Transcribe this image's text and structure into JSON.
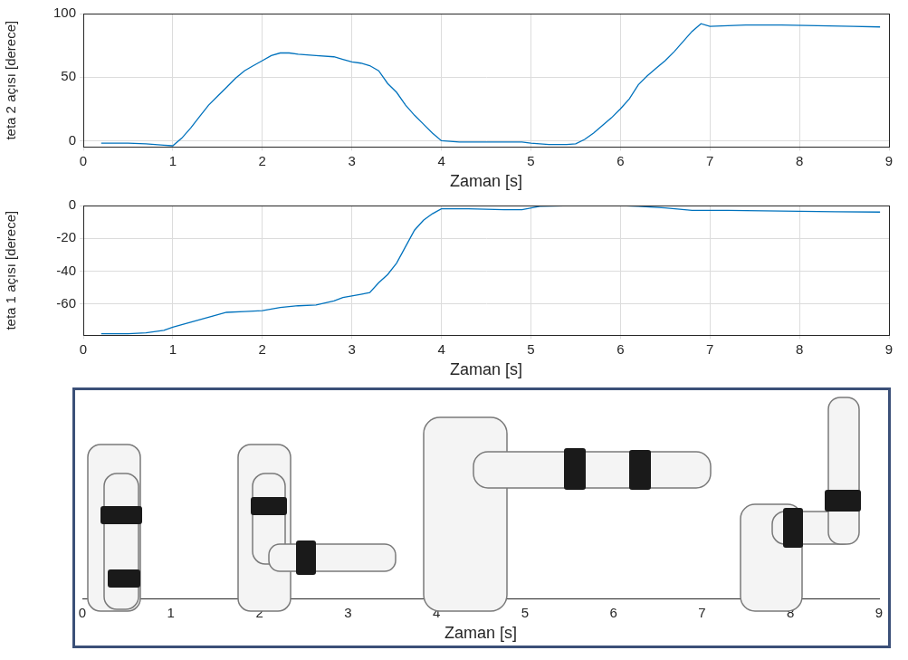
{
  "chart_data": [
    {
      "type": "line",
      "ylabel": "teta 2 açısı [derece]",
      "xlabel": "Zaman [s]",
      "x": [
        0.2,
        0.5,
        0.7,
        0.9,
        1.0,
        1.1,
        1.2,
        1.3,
        1.4,
        1.5,
        1.6,
        1.7,
        1.8,
        1.9,
        2.0,
        2.1,
        2.2,
        2.3,
        2.4,
        2.6,
        2.8,
        2.9,
        3.0,
        3.1,
        3.2,
        3.3,
        3.4,
        3.5,
        3.6,
        3.7,
        3.8,
        3.9,
        4.0,
        4.2,
        4.5,
        4.9,
        5.0,
        5.2,
        5.4,
        5.5,
        5.6,
        5.7,
        5.8,
        5.9,
        6.0,
        6.1,
        6.2,
        6.3,
        6.4,
        6.5,
        6.6,
        6.7,
        6.8,
        6.9,
        7.0,
        7.2,
        7.4,
        7.8,
        8.2,
        8.6,
        8.9
      ],
      "values": [
        -2,
        -2,
        -2.5,
        -3.5,
        -4,
        2,
        10,
        19,
        28,
        35,
        42,
        49,
        55,
        59,
        63,
        67,
        69,
        69,
        68,
        67,
        66,
        64,
        62,
        61,
        59,
        55,
        45,
        38,
        28,
        20,
        13,
        6,
        0,
        -1,
        -1,
        -1,
        -2,
        -3,
        -3,
        -2.5,
        1,
        6,
        12,
        18,
        25,
        33,
        44,
        51,
        57,
        63,
        70,
        78,
        86,
        92,
        90,
        90.5,
        91,
        91,
        90.5,
        90,
        89.5
      ],
      "color": "#0072bd",
      "marker": "none",
      "line_style": "solid",
      "xlim": [
        0,
        9
      ],
      "xticks": [
        0,
        1,
        2,
        3,
        4,
        5,
        6,
        7,
        8,
        9
      ],
      "ylim": [
        -5,
        100
      ],
      "yticks": [
        0,
        50,
        100
      ],
      "grid": true
    },
    {
      "type": "line",
      "ylabel": "teta 1 açısı [derece]",
      "xlabel": "Zaman [s]",
      "x": [
        0.2,
        0.5,
        0.7,
        0.9,
        1.0,
        1.2,
        1.4,
        1.6,
        1.8,
        2.0,
        2.2,
        2.4,
        2.6,
        2.8,
        2.9,
        3.0,
        3.1,
        3.2,
        3.3,
        3.4,
        3.5,
        3.6,
        3.7,
        3.8,
        3.9,
        4.0,
        4.3,
        4.7,
        4.9,
        5.1,
        5.5,
        6.0,
        6.2,
        6.5,
        6.8,
        7.2,
        7.6,
        8.0,
        8.4,
        8.9
      ],
      "values": [
        -78,
        -78,
        -77.5,
        -76,
        -74,
        -71,
        -68,
        -65,
        -64.5,
        -64,
        -62,
        -61,
        -60.5,
        -58,
        -56,
        -55,
        -54,
        -53,
        -47,
        -42,
        -35,
        -25,
        -15,
        -9,
        -5,
        -2,
        -2,
        -2.5,
        -2.5,
        -0.5,
        0,
        0,
        -0.5,
        -1.5,
        -3,
        -3,
        -3.2,
        -3.5,
        -3.8,
        -4
      ],
      "color": "#0072bd",
      "marker": "none",
      "line_style": "solid",
      "xlim": [
        0,
        9
      ],
      "xticks": [
        0,
        1,
        2,
        3,
        4,
        5,
        6,
        7,
        8,
        9
      ],
      "ylim": [
        -79,
        0
      ],
      "yticks": [
        -60,
        -40,
        -20,
        0
      ],
      "grid": true
    },
    {
      "type": "scatter",
      "xlabel": "Zaman [s]",
      "xlim": [
        0,
        9
      ],
      "xticks": [
        0,
        1,
        2,
        3,
        4,
        5,
        6,
        7,
        8,
        9
      ],
      "tick_labels": "x",
      "grid": false
    }
  ]
}
